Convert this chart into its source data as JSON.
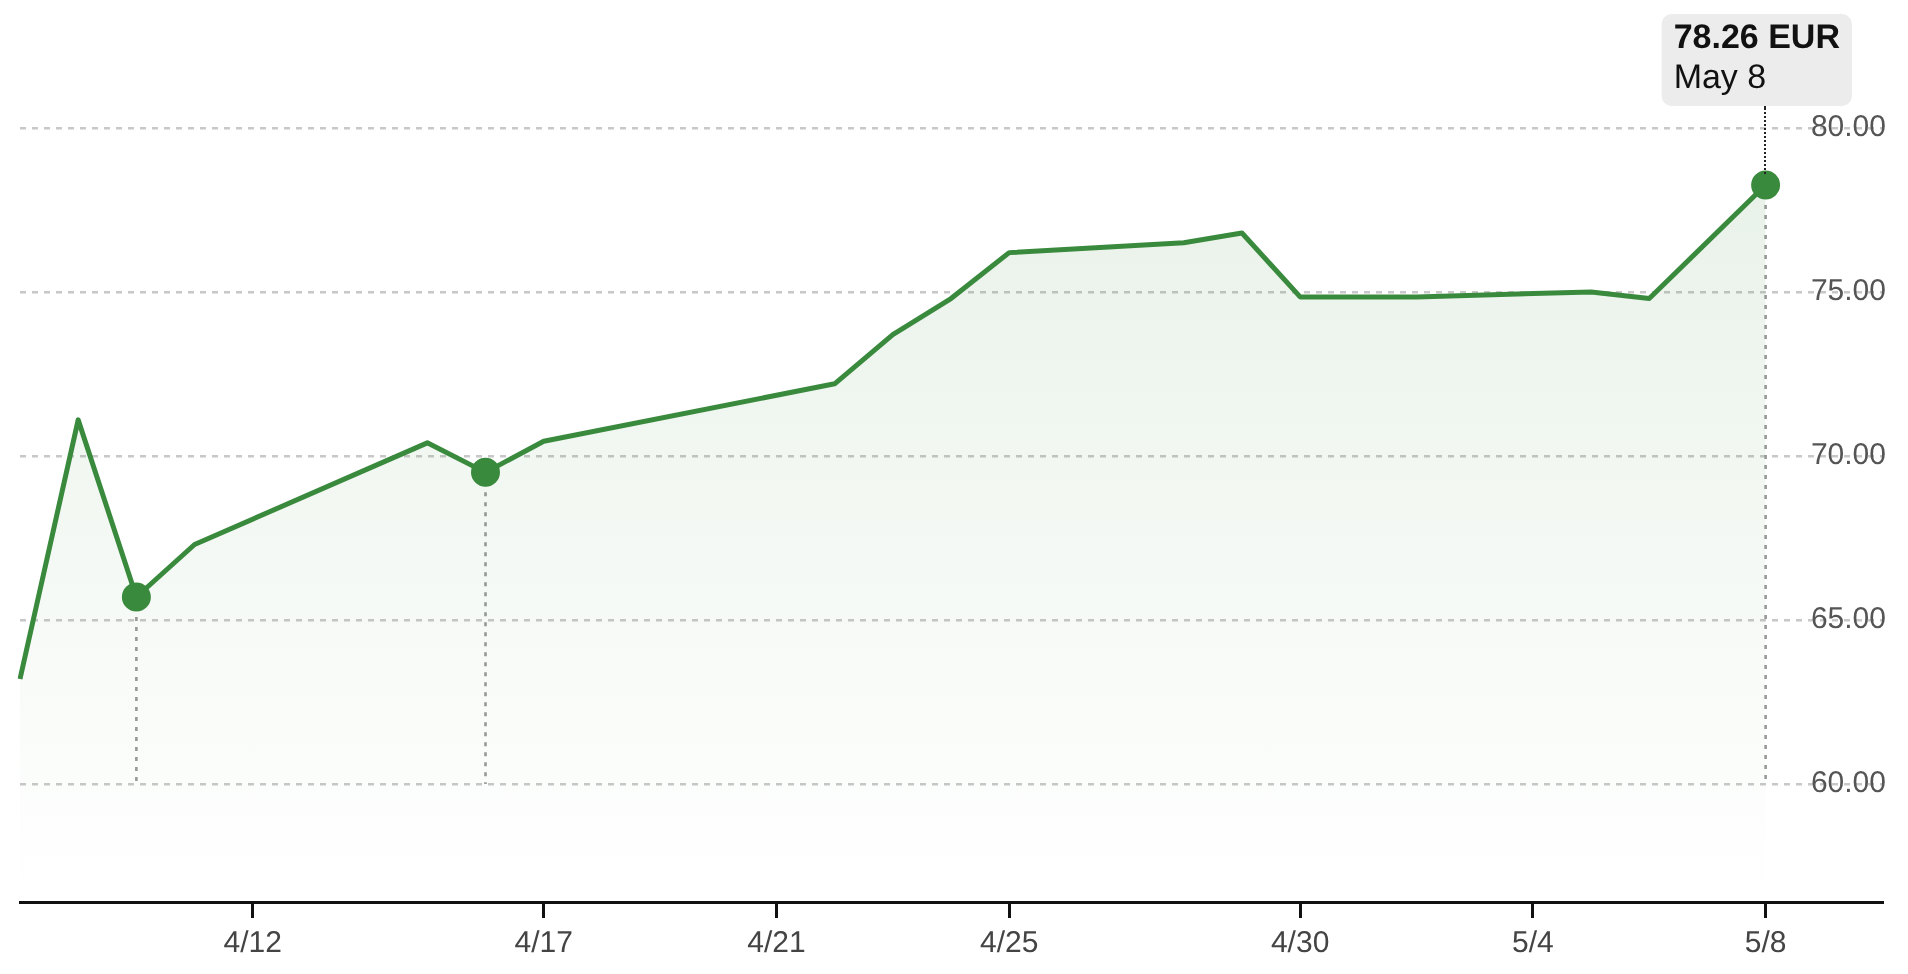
{
  "chart_data": {
    "type": "area",
    "categories": [
      null,
      null,
      null,
      null,
      "4/12",
      null,
      null,
      null,
      null,
      "4/17",
      null,
      null,
      null,
      "4/21",
      null,
      null,
      null,
      "4/25",
      null,
      null,
      null,
      null,
      "4/30",
      null,
      null,
      null,
      "5/4",
      null,
      null,
      null,
      "5/8",
      null,
      null
    ],
    "ylim": [
      56.4,
      80
    ],
    "yticks": [
      {
        "value": 60,
        "label": "60.00"
      },
      {
        "value": 65,
        "label": "65.00"
      },
      {
        "value": 70,
        "label": "70.00"
      },
      {
        "value": 75,
        "label": "75.00"
      },
      {
        "value": 80,
        "label": "80.00"
      }
    ],
    "grid": "y",
    "legend": false,
    "series": [
      {
        "color": "#3a8a3e",
        "values": [
          63.2,
          71.1,
          65.7,
          67.3,
          null,
          null,
          null,
          70.4,
          69.5,
          70.45,
          null,
          null,
          null,
          null,
          72.2,
          73.7,
          74.8,
          76.2,
          null,
          null,
          76.5,
          76.8,
          74.85,
          null,
          74.85,
          null,
          null,
          75.0,
          74.8,
          null,
          78.26,
          null,
          null
        ]
      },
      {
        "type": "scatter",
        "color": "#3a8a3e",
        "marker": "circle",
        "line_style": "dotted",
        "errors": [
          null,
          null,
          [
            60,
            65.7
          ],
          null,
          null,
          null,
          null,
          null,
          [
            60,
            69.5
          ],
          null,
          null,
          null,
          null,
          null,
          null,
          null,
          null,
          null,
          null,
          null,
          null,
          null,
          null,
          null,
          null,
          null,
          null,
          null,
          null,
          null,
          [
            60,
            78.26
          ],
          null,
          null
        ],
        "values": [
          null,
          null,
          65.7,
          null,
          null,
          null,
          null,
          null,
          69.5,
          null,
          null,
          null,
          null,
          null,
          null,
          null,
          null,
          null,
          null,
          null,
          null,
          null,
          null,
          null,
          null,
          null,
          null,
          null,
          null,
          null,
          78.26,
          null,
          null
        ]
      }
    ],
    "annotations": [
      {
        "text": "78.26 EUR\nMay 8",
        "x": "5/8",
        "y": 78.26
      }
    ]
  }
}
